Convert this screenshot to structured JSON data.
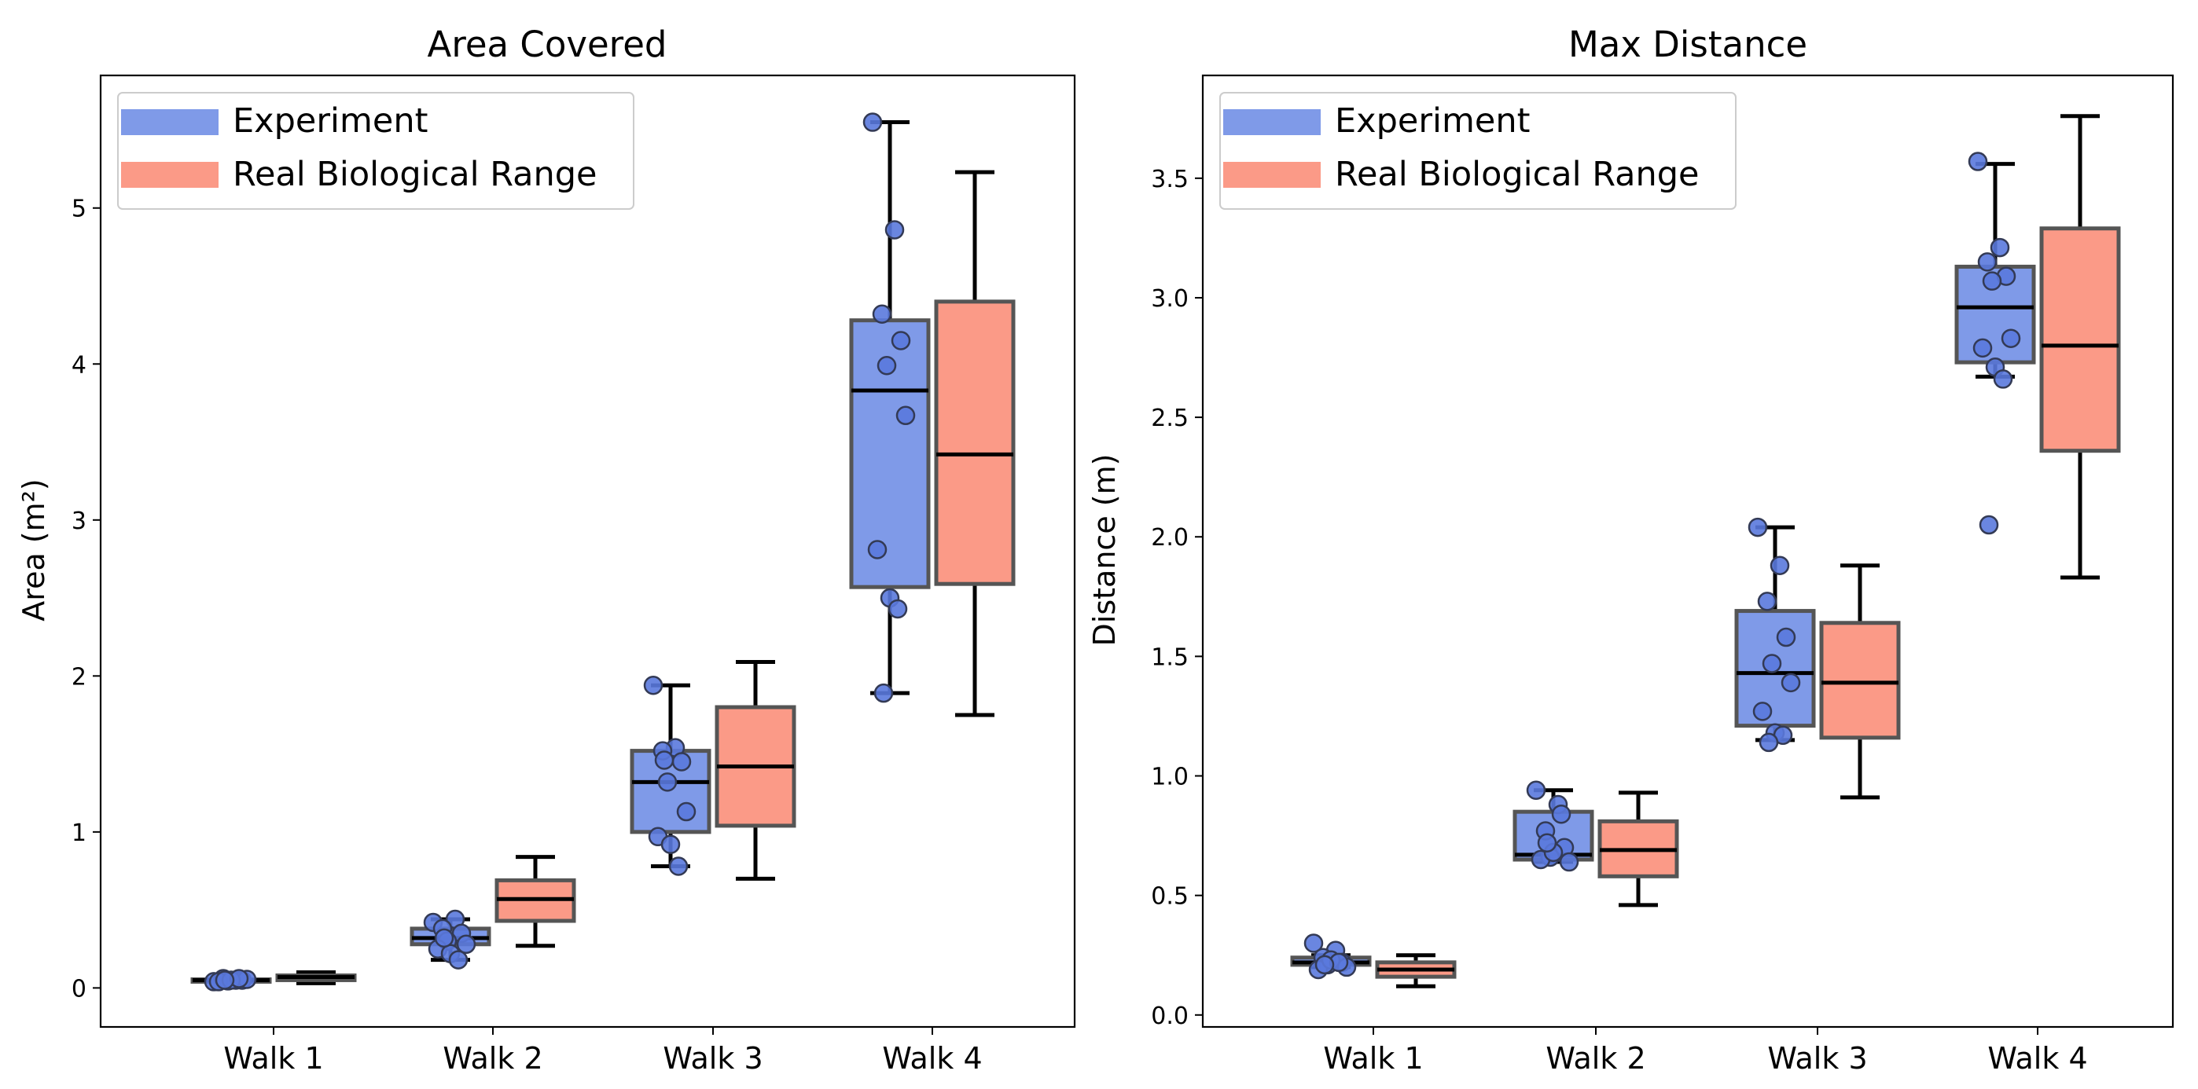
{
  "colors": {
    "experiment": "#7f9ae8",
    "experiment_point": "#5a79dd",
    "real": "#fb9a87",
    "box_edge": "#555555",
    "frame": "#000000"
  },
  "legend": {
    "experiment_label": "Experiment",
    "real_label": "Real Biological Range"
  },
  "chart_data": [
    {
      "type": "box",
      "title": "Area Covered",
      "xlabel": "",
      "ylabel": "Area (m²)",
      "ylim": [
        -0.25,
        5.85
      ],
      "yticks": [
        0,
        1,
        2,
        3,
        4,
        5
      ],
      "ytick_labels": [
        "0",
        "1",
        "2",
        "3",
        "4",
        "5"
      ],
      "categories": [
        "Walk 1",
        "Walk 2",
        "Walk 3",
        "Walk 4"
      ],
      "legend_position": "top-left",
      "series": [
        {
          "name": "Experiment",
          "boxes": [
            {
              "whisker_low": 0.04,
              "q1": 0.045,
              "median": 0.05,
              "q3": 0.055,
              "whisker_high": 0.06
            },
            {
              "whisker_low": 0.18,
              "q1": 0.28,
              "median": 0.32,
              "q3": 0.38,
              "whisker_high": 0.44
            },
            {
              "whisker_low": 0.78,
              "q1": 1.0,
              "median": 1.32,
              "q3": 1.52,
              "whisker_high": 1.94
            },
            {
              "whisker_low": 1.89,
              "q1": 2.57,
              "median": 3.83,
              "q3": 4.28,
              "whisker_high": 5.55
            }
          ],
          "points": [
            [
              0.04,
              0.05,
              0.06,
              0.05,
              0.045,
              0.055,
              0.04,
              0.05,
              0.06,
              0.05
            ],
            [
              0.42,
              0.44,
              0.38,
              0.35,
              0.3,
              0.28,
              0.25,
              0.22,
              0.18,
              0.32
            ],
            [
              1.94,
              1.54,
              1.52,
              1.45,
              1.32,
              1.13,
              0.97,
              0.92,
              0.78,
              1.46
            ],
            [
              5.55,
              4.86,
              4.32,
              4.15,
              3.99,
              3.67,
              2.81,
              2.5,
              2.43,
              1.89
            ]
          ]
        },
        {
          "name": "Real Biological Range",
          "boxes": [
            {
              "whisker_low": 0.03,
              "q1": 0.05,
              "median": 0.07,
              "q3": 0.08,
              "whisker_high": 0.1
            },
            {
              "whisker_low": 0.27,
              "q1": 0.43,
              "median": 0.57,
              "q3": 0.69,
              "whisker_high": 0.84
            },
            {
              "whisker_low": 0.7,
              "q1": 1.04,
              "median": 1.42,
              "q3": 1.8,
              "whisker_high": 2.09
            },
            {
              "whisker_low": 1.75,
              "q1": 2.59,
              "median": 3.42,
              "q3": 4.4,
              "whisker_high": 5.23
            }
          ]
        }
      ]
    },
    {
      "type": "box",
      "title": "Max Distance",
      "xlabel": "",
      "ylabel": "Distance (m)",
      "ylim": [
        -0.05,
        3.93
      ],
      "yticks": [
        0.0,
        0.5,
        1.0,
        1.5,
        2.0,
        2.5,
        3.0,
        3.5
      ],
      "ytick_labels": [
        "0.0",
        "0.5",
        "1.0",
        "1.5",
        "2.0",
        "2.5",
        "3.0",
        "3.5"
      ],
      "categories": [
        "Walk 1",
        "Walk 2",
        "Walk 3",
        "Walk 4"
      ],
      "legend_position": "top-left",
      "series": [
        {
          "name": "Experiment",
          "boxes": [
            {
              "whisker_low": 0.2,
              "q1": 0.21,
              "median": 0.22,
              "q3": 0.24,
              "whisker_high": 0.25
            },
            {
              "whisker_low": 0.64,
              "q1": 0.65,
              "median": 0.67,
              "q3": 0.85,
              "whisker_high": 0.94
            },
            {
              "whisker_low": 1.15,
              "q1": 1.21,
              "median": 1.43,
              "q3": 1.69,
              "whisker_high": 2.04
            },
            {
              "whisker_low": 2.67,
              "q1": 2.73,
              "median": 2.96,
              "q3": 3.13,
              "whisker_high": 3.56
            }
          ],
          "points": [
            [
              0.3,
              0.27,
              0.24,
              0.22,
              0.21,
              0.2,
              0.19,
              0.23,
              0.22,
              0.21
            ],
            [
              0.94,
              0.88,
              0.77,
              0.7,
              0.66,
              0.64,
              0.65,
              0.68,
              0.84,
              0.72
            ],
            [
              2.04,
              1.88,
              1.73,
              1.58,
              1.47,
              1.39,
              1.27,
              1.18,
              1.17,
              1.14
            ],
            [
              3.57,
              3.21,
              3.15,
              3.09,
              3.07,
              2.83,
              2.79,
              2.71,
              2.66,
              2.05
            ]
          ]
        },
        {
          "name": "Real Biological Range",
          "boxes": [
            {
              "whisker_low": 0.12,
              "q1": 0.16,
              "median": 0.19,
              "q3": 0.22,
              "whisker_high": 0.25
            },
            {
              "whisker_low": 0.46,
              "q1": 0.58,
              "median": 0.69,
              "q3": 0.81,
              "whisker_high": 0.93
            },
            {
              "whisker_low": 0.91,
              "q1": 1.16,
              "median": 1.39,
              "q3": 1.64,
              "whisker_high": 1.88
            },
            {
              "whisker_low": 1.83,
              "q1": 2.36,
              "median": 2.8,
              "q3": 3.29,
              "whisker_high": 3.76
            }
          ]
        }
      ]
    }
  ]
}
